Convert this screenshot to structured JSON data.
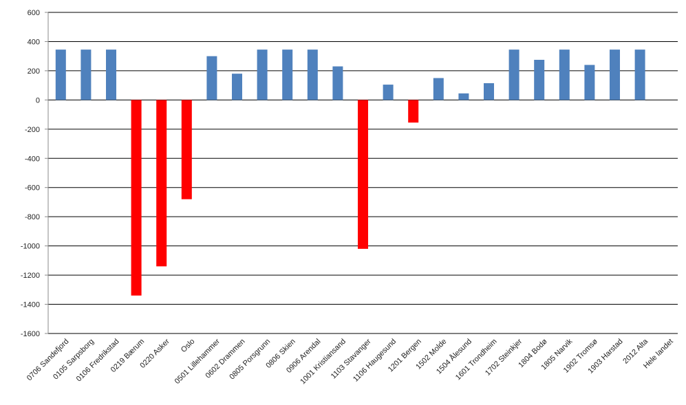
{
  "chart_data": {
    "type": "bar",
    "categories": [
      "0706 Sandefjord",
      "0105 Sarpsborg",
      "0106 Fredrikstad",
      "0219 Bærum",
      "0220 Asker",
      "Oslo",
      "0501 Lillehammer",
      "0602 Drammen",
      "0805 Porsgrunn",
      "0806 Skien",
      "0906 Arendal",
      "1001 Kristiansand",
      "1103 Stavanger",
      "1106 Haugesund",
      "1201 Bergen",
      "1502 Molde",
      "1504 Ålesund",
      "1601 Trondheim",
      "1702 Steinkjer",
      "1804 Bodø",
      "1805 Narvik",
      "1902 Tromsø",
      "1903 Harstad",
      "2012 Alta",
      "Hele landet"
    ],
    "values": [
      345,
      345,
      345,
      -1340,
      -1140,
      -680,
      300,
      180,
      345,
      345,
      345,
      230,
      -1020,
      105,
      -155,
      150,
      45,
      115,
      345,
      275,
      345,
      240,
      345,
      345,
      0
    ],
    "ylim": [
      -1600,
      600
    ],
    "yticks": [
      600,
      400,
      200,
      0,
      -200,
      -400,
      -600,
      -800,
      -1000,
      -1200,
      -1400,
      -1600
    ],
    "ytick_labels": [
      "600",
      "400",
      "200",
      "0",
      "-200",
      "-400",
      "-600",
      "-800",
      "-1000",
      "-1200",
      "-1400",
      "-1600"
    ],
    "grid": true,
    "colors": {
      "positive": "#4f81bd",
      "negative": "#ff0000",
      "grid": "#000000",
      "axis": "#888888"
    },
    "title": "",
    "xlabel": "",
    "ylabel": ""
  }
}
